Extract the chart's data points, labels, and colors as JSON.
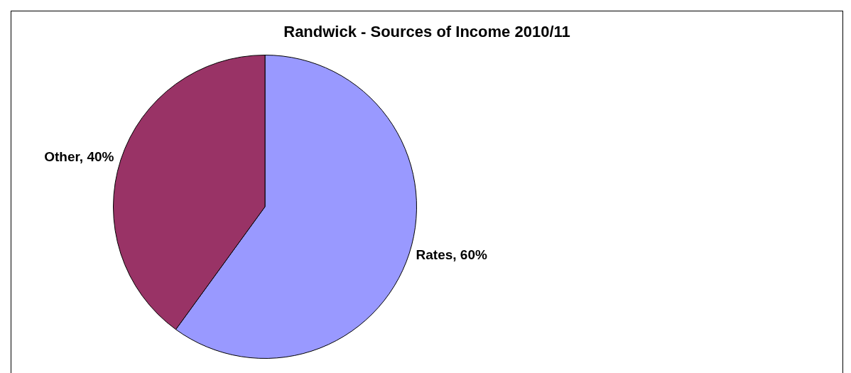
{
  "chart_data": {
    "type": "pie",
    "title": "Randwick - Sources of Income 2010/11",
    "categories": [
      "Rates",
      "Other"
    ],
    "values": [
      60,
      40
    ],
    "colors": [
      "#9999ff",
      "#993366"
    ],
    "value_labels": [
      "60%",
      "40%"
    ],
    "legend": false
  }
}
